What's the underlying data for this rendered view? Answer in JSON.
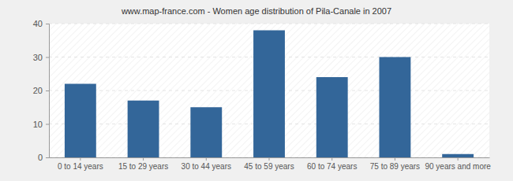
{
  "chart_data": {
    "type": "bar",
    "title": "www.map-france.com - Women age distribution of Pila-Canale in 2007",
    "categories": [
      "0 to 14 years",
      "15 to 29 years",
      "30 to 44 years",
      "45 to 59 years",
      "60 to 74 years",
      "75 to 89 years",
      "90 years and more"
    ],
    "values": [
      22,
      17,
      15,
      38,
      24,
      30,
      1
    ],
    "color": "#336699",
    "ylim": [
      0,
      40
    ],
    "yticks": [
      0,
      10,
      20,
      30,
      40
    ],
    "grid": true
  }
}
